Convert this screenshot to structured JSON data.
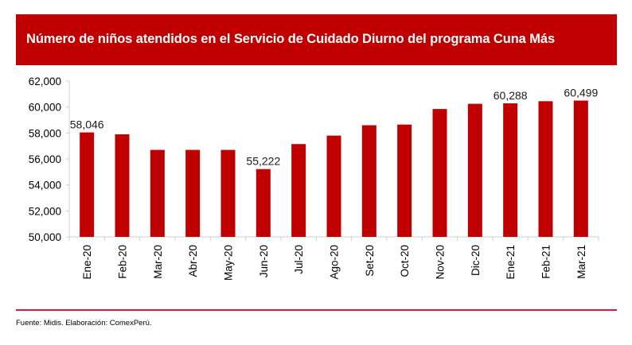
{
  "header": {
    "title": "Número de niños atendidos en el Servicio de Cuidado Diurno del programa Cuna Más"
  },
  "footer": {
    "source": "Fuente: Midis. Elaboración: ComexPerú."
  },
  "colors": {
    "banner": "#c00000",
    "bar": "#c00000",
    "divider": "#e3173e",
    "axis": "#c8d0d0"
  },
  "chart_data": {
    "type": "bar",
    "title": "Número de niños atendidos en el Servicio de Cuidado Diurno del programa Cuna Más",
    "xlabel": "",
    "ylabel": "",
    "categories": [
      "Ene-20",
      "Feb-20",
      "Mar-20",
      "Abr-20",
      "May-20",
      "Jun-20",
      "Jul-20",
      "Ago-20",
      "Set-20",
      "Oct-20",
      "Nov-20",
      "Dic-20",
      "Ene-21",
      "Feb-21",
      "Mar-21"
    ],
    "values": [
      58046,
      57900,
      56700,
      56700,
      56700,
      55222,
      57150,
      57800,
      58600,
      58650,
      59850,
      60250,
      60288,
      60450,
      60499
    ],
    "data_labels": [
      {
        "index": 0,
        "text": "58,046"
      },
      {
        "index": 5,
        "text": "55,222"
      },
      {
        "index": 12,
        "text": "60,288"
      },
      {
        "index": 14,
        "text": "60,499"
      }
    ],
    "ylim": [
      50000,
      62000
    ],
    "yticks": [
      50000,
      52000,
      54000,
      56000,
      58000,
      60000,
      62000
    ],
    "ytick_labels": [
      "50,000",
      "52,000",
      "54,000",
      "56,000",
      "58,000",
      "60,000",
      "62,000"
    ],
    "grid": false,
    "legend": "none"
  }
}
